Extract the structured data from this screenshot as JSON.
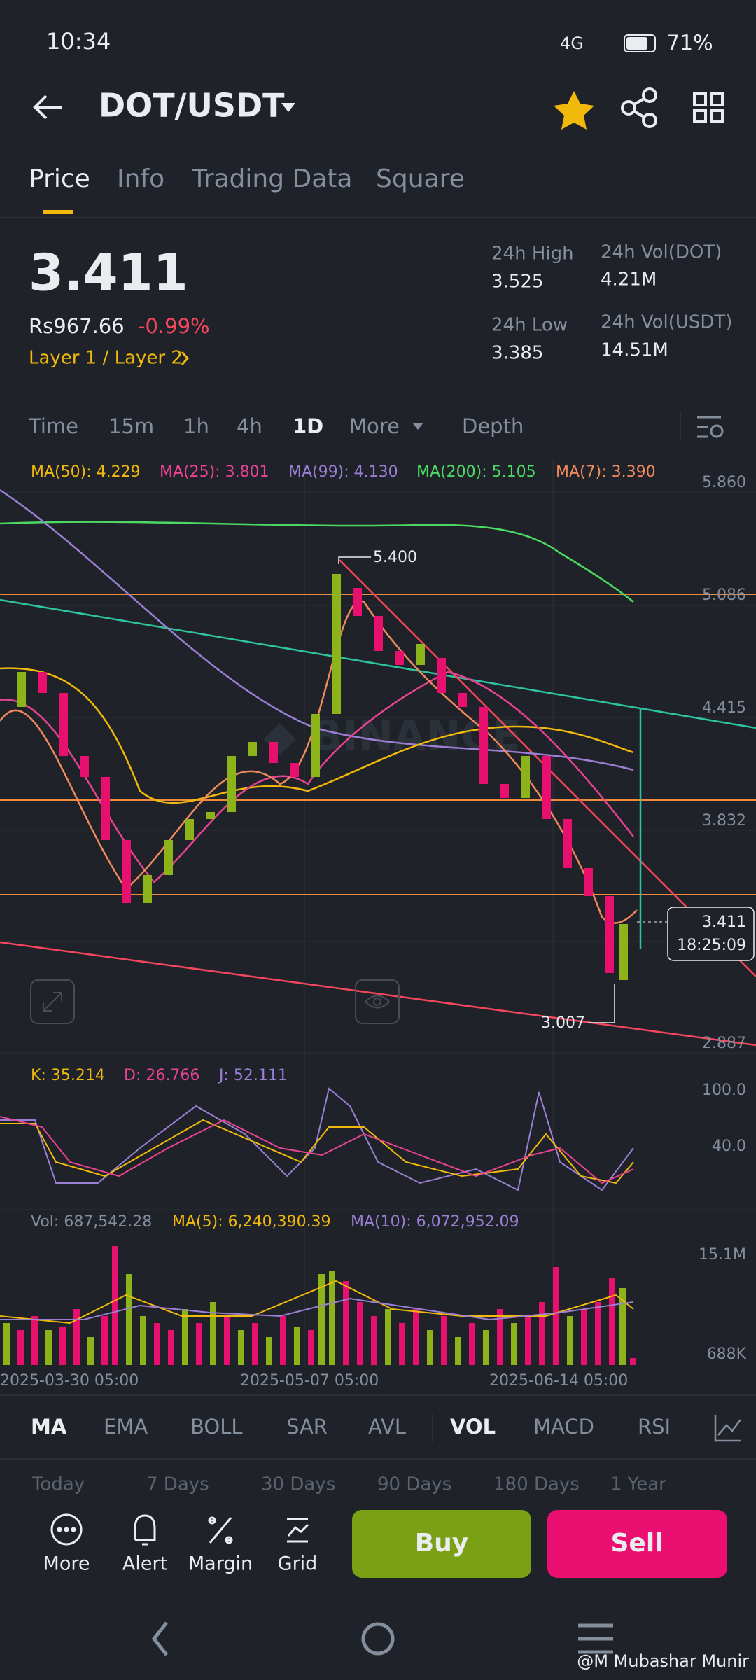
{
  "status_bar": {
    "time": "10:34",
    "network": "4G",
    "battery": "71%"
  },
  "header": {
    "pair": "DOT/USDT"
  },
  "tabs": [
    "Price",
    "Info",
    "Trading Data",
    "Square"
  ],
  "ticker": {
    "price": "3.411",
    "fiat": "Rs967.66",
    "change": "-0.99%",
    "tags": "Layer 1 / Layer 2"
  },
  "stats": [
    {
      "label": "24h High",
      "value": "3.525"
    },
    {
      "label": "24h Vol(DOT)",
      "value": "4.21M"
    },
    {
      "label": "24h Low",
      "value": "3.385"
    },
    {
      "label": "24h Vol(USDT)",
      "value": "14.51M"
    }
  ],
  "intervals": [
    "Time",
    "15m",
    "1h",
    "4h",
    "1D",
    "More",
    "Depth"
  ],
  "chart": {
    "ma_legend": [
      "MA(50): 4.229",
      "MA(25): 3.801",
      "MA(99): 4.130",
      "MA(200): 5.105",
      "MA(7): 3.390"
    ],
    "price_axis": [
      "5.860",
      "5.086",
      "4.415",
      "3.832",
      "2.887"
    ],
    "high_marker": "5.400",
    "low_marker": "3.007",
    "last_price": "3.411",
    "countdown": "18:25:09",
    "kdj_legend": [
      "K: 35.214",
      "D: 26.766",
      "J: 52.111"
    ],
    "kdj_axis": [
      "100.0",
      "40.0"
    ],
    "volume_legend": [
      "Vol: 687,542.28",
      "MA(5): 6,240,390.39",
      "MA(10): 6,072,952.09"
    ],
    "volume_axis": [
      "15.1M",
      "688K"
    ],
    "dates": [
      "2025-03-30 05:00",
      "2025-05-07 05:00",
      "2025-06-14 05:00"
    ]
  },
  "indicators": [
    "MA",
    "EMA",
    "BOLL",
    "SAR",
    "AVL",
    "VOL",
    "MACD",
    "RSI"
  ],
  "periods": [
    "Today",
    "7 Days",
    "30 Days",
    "90 Days",
    "180 Days",
    "1 Year"
  ],
  "actions": [
    "More",
    "Alert",
    "Margin",
    "Grid"
  ],
  "buy": "Buy",
  "sell": "Sell",
  "watermark": "@M Mubashar Munir"
}
